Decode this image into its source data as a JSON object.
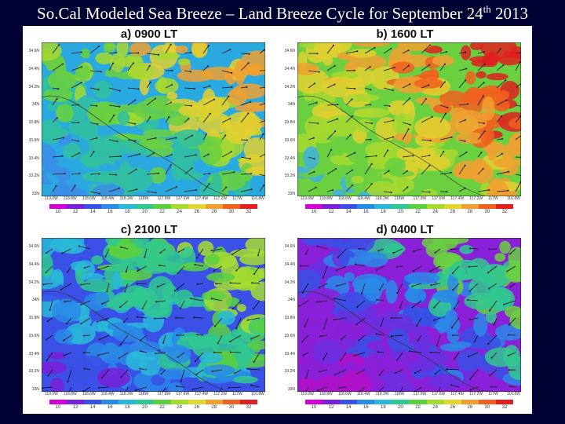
{
  "slide": {
    "title_main": "So.Cal Modeled Sea Breeze – Land Breeze Cycle for September 24",
    "title_sup": "th",
    "title_year": " 2013"
  },
  "panels": [
    {
      "label": "a) 0900 LT",
      "scheme": "warm"
    },
    {
      "label": "b) 1600 LT",
      "scheme": "hot"
    },
    {
      "label": "c) 2100 LT",
      "scheme": "cool"
    },
    {
      "label": "d) 0400 LT",
      "scheme": "cold"
    }
  ],
  "lat_ticks": [
    "34.6N",
    "34.4N",
    "34.2N",
    "34N",
    "33.8N",
    "33.6N",
    "33.4N",
    "33.2N",
    "33N"
  ],
  "lon_ticks": [
    "119.0W",
    "118.8W",
    "118.6W",
    "118.4W",
    "118.2W",
    "118W",
    "117.8W",
    "117.6W",
    "117.4W",
    "117.2W",
    "117W",
    "116.8W"
  ],
  "colorbar_ticks": [
    "10",
    "12",
    "14",
    "16",
    "18",
    "20",
    "22",
    "24",
    "26",
    "28",
    "30",
    "32"
  ],
  "colorbar_colors": [
    "#d400d4",
    "#7a20d8",
    "#3a50e6",
    "#2a8ae8",
    "#2ab8d8",
    "#30c890",
    "#5ad040",
    "#a6dc30",
    "#e0d830",
    "#f0a030",
    "#f06020",
    "#e02020"
  ],
  "scheme_colors": {
    "warm": [
      "#3a8de6",
      "#2aa8e0",
      "#30c0a0",
      "#6ad040",
      "#a6d830",
      "#e0d030",
      "#f0a030"
    ],
    "hot": [
      "#40b0e0",
      "#6ad040",
      "#a6d830",
      "#e0d030",
      "#f0a030",
      "#f06020",
      "#e02020"
    ],
    "cool": [
      "#7a20d8",
      "#3a50e6",
      "#2a8ae8",
      "#2ab8d8",
      "#30c890",
      "#5ad040",
      "#a6dc30"
    ],
    "cold": [
      "#b010c8",
      "#8a20d8",
      "#6a30e0",
      "#3a50e6",
      "#2a8ae8",
      "#30c890",
      "#6ad040"
    ]
  }
}
